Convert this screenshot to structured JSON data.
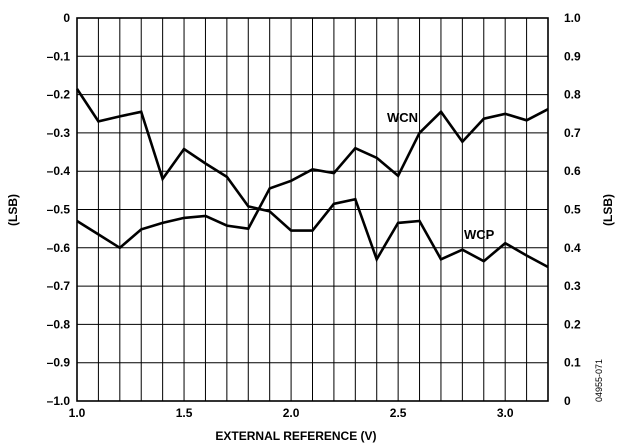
{
  "chart_data": {
    "type": "line",
    "xlabel": "EXTERNAL REFERENCE (V)",
    "ylabel": "(LSB)",
    "ylabel_right": "(LSB)",
    "xlim": [
      1.0,
      3.2
    ],
    "ylim": [
      -1.0,
      0
    ],
    "ylim_right": [
      0,
      1.0
    ],
    "x_ticks": [
      1.0,
      1.5,
      2.0,
      2.5,
      3.0
    ],
    "x_tick_labels": [
      "1.0",
      "1.5",
      "2.0",
      "2.5",
      "3.0"
    ],
    "y_ticks": [
      0,
      -0.1,
      -0.2,
      -0.3,
      -0.4,
      -0.5,
      -0.6,
      -0.7,
      -0.8,
      -0.9,
      -1.0
    ],
    "y_tick_labels": [
      "0",
      "–0.1",
      "–0.2",
      "–0.3",
      "–0.4",
      "–0.5",
      "–0.6",
      "–0.7",
      "–0.8",
      "–0.9",
      "–1.0"
    ],
    "y_right_ticks": [
      1.0,
      0.9,
      0.8,
      0.7,
      0.6,
      0.5,
      0.4,
      0.3,
      0.2,
      0.1,
      0
    ],
    "y_right_tick_labels": [
      "1.0",
      "0.9",
      "0.8",
      "0.7",
      "0.6",
      "0.5",
      "0.4",
      "0.3",
      "0.2",
      "0.1",
      "0"
    ],
    "x_grid_step": 0.1,
    "grid": true,
    "series": [
      {
        "name": "WCN",
        "axis": "left",
        "x": [
          1.0,
          1.1,
          1.2,
          1.3,
          1.4,
          1.5,
          1.6,
          1.7,
          1.8,
          1.9,
          2.0,
          2.1,
          2.2,
          2.3,
          2.4,
          2.5,
          2.6,
          2.7,
          2.8,
          2.9,
          3.0,
          3.1,
          3.2
        ],
        "y": [
          -0.185,
          -0.27,
          -0.257,
          -0.245,
          -0.42,
          -0.342,
          -0.38,
          -0.415,
          -0.492,
          -0.505,
          -0.555,
          -0.555,
          -0.485,
          -0.473,
          -0.63,
          -0.535,
          -0.53,
          -0.63,
          -0.605,
          -0.635,
          -0.588,
          -0.62,
          -0.65
        ]
      },
      {
        "name": "WCP",
        "axis": "right",
        "x": [
          1.0,
          1.1,
          1.2,
          1.3,
          1.4,
          1.5,
          1.6,
          1.7,
          1.8,
          1.9,
          2.0,
          2.1,
          2.2,
          2.3,
          2.4,
          2.5,
          2.6,
          2.7,
          2.8,
          2.9,
          3.0,
          3.1,
          3.2
        ],
        "y": [
          0.47,
          0.435,
          0.4,
          0.448,
          0.465,
          0.478,
          0.483,
          0.458,
          0.45,
          0.555,
          0.575,
          0.605,
          0.595,
          0.66,
          0.635,
          0.588,
          0.7,
          0.755,
          0.677,
          0.737,
          0.75,
          0.733,
          0.762
        ]
      }
    ],
    "annotations": [
      "WCN",
      "WCP"
    ],
    "figure_id": "04955-071"
  }
}
